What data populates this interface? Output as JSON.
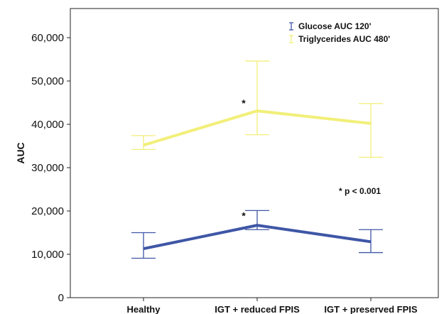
{
  "chart_data": {
    "type": "line",
    "title": "",
    "xlabel": "",
    "ylabel": "AUC",
    "ylim": [
      0,
      70000
    ],
    "yticks": [
      0,
      10000,
      20000,
      30000,
      40000,
      50000,
      60000
    ],
    "ytick_labels": [
      "0",
      "10,000",
      "20,000",
      "30,000",
      "40,000",
      "50,000",
      "60,000"
    ],
    "categories": [
      "Healthy",
      "IGT + reduced FPIS",
      "IGT + preserved FPIS"
    ],
    "grid": false,
    "legend_position": "top-right",
    "series": [
      {
        "name": "Glucose AUC 120'",
        "color": "#3f56a6",
        "values": [
          11300,
          16700,
          12900
        ],
        "err_low": [
          9100,
          15700,
          10400
        ],
        "err_high": [
          15000,
          20100,
          15700
        ]
      },
      {
        "name": "Triglycerides AUC 480'",
        "color": "#f2ef7a",
        "values": [
          35200,
          43100,
          40200
        ],
        "err_low": [
          34200,
          37600,
          32400
        ],
        "err_high": [
          37400,
          54600,
          44800
        ]
      }
    ],
    "significance_marks": [
      {
        "series": 0,
        "category": 1,
        "text": "*"
      },
      {
        "series": 1,
        "category": 1,
        "text": "*"
      }
    ],
    "annotation": "* p < 0.001"
  }
}
